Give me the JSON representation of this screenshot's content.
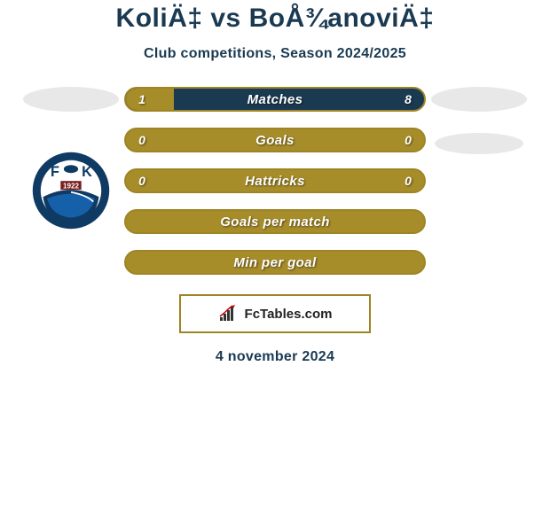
{
  "title": "KoliÄ‡ vs BoÅ¾anoviÄ‡",
  "subtitle": "Club competitions, Season 2024/2025",
  "colors": {
    "accent_dark": "#1a3a52",
    "accent_gold": "#a78d2a",
    "gold_border": "#9e8424",
    "text_white": "#ffffff",
    "bg": "#ffffff",
    "placeholder": "#e8e8e8"
  },
  "bars": [
    {
      "label": "Matches",
      "left": "1",
      "right": "8",
      "fill_left_pct": 16,
      "background": "dark"
    },
    {
      "label": "Goals",
      "left": "0",
      "right": "0",
      "fill_left_pct": 0,
      "background": "gold"
    },
    {
      "label": "Hattricks",
      "left": "0",
      "right": "0",
      "fill_left_pct": 0,
      "background": "gold"
    },
    {
      "label": "Goals per match",
      "left": "",
      "right": "",
      "fill_left_pct": 0,
      "background": "gold"
    },
    {
      "label": "Min per goal",
      "left": "",
      "right": "",
      "fill_left_pct": 0,
      "background": "gold"
    }
  ],
  "club_badge": {
    "letters_left": "F",
    "letters_right": "K",
    "year": "1922",
    "ring_color": "#0f3a63",
    "inner_bg": "#ffffff",
    "swoosh_color": "#0f3a63"
  },
  "branding": {
    "text": "FcTables.com"
  },
  "date": "4 november 2024"
}
